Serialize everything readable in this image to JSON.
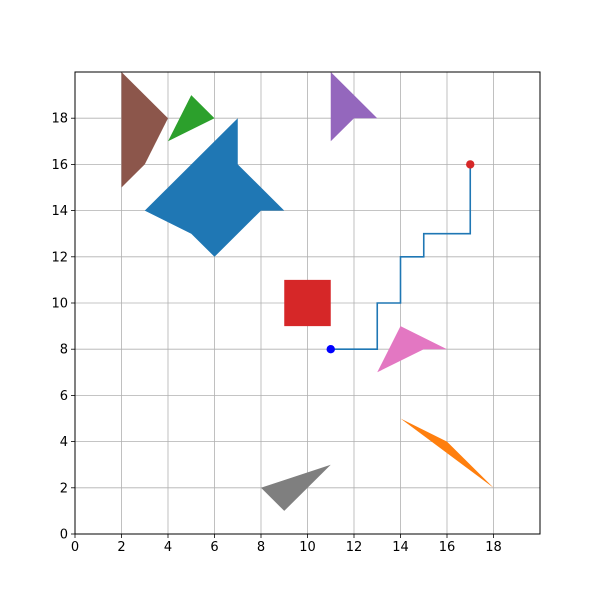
{
  "chart_data": {
    "type": "scatter",
    "title": "",
    "xlabel": "",
    "ylabel": "",
    "xlim": [
      0,
      20
    ],
    "ylim": [
      0,
      20
    ],
    "xticks": [
      0,
      2,
      4,
      6,
      8,
      10,
      12,
      14,
      16,
      18
    ],
    "yticks": [
      0,
      2,
      4,
      6,
      8,
      10,
      12,
      14,
      16,
      18
    ],
    "grid": true,
    "obstacles": [
      {
        "color": "#8c564b",
        "points": [
          [
            2,
            20
          ],
          [
            4,
            18
          ],
          [
            3,
            16
          ],
          [
            2,
            15
          ]
        ]
      },
      {
        "color": "#2ca02c",
        "points": [
          [
            4,
            17
          ],
          [
            5,
            19
          ],
          [
            6,
            18
          ]
        ]
      },
      {
        "color": "#1f77b4",
        "points": [
          [
            3,
            14
          ],
          [
            7,
            18
          ],
          [
            7,
            16
          ],
          [
            9,
            14
          ],
          [
            8,
            14
          ],
          [
            6,
            12
          ],
          [
            5,
            13
          ]
        ]
      },
      {
        "color": "#9467bd",
        "points": [
          [
            11,
            20
          ],
          [
            11,
            17
          ],
          [
            12,
            18
          ],
          [
            13,
            18
          ]
        ]
      },
      {
        "color": "#d62728",
        "points": [
          [
            9,
            9
          ],
          [
            9,
            11
          ],
          [
            11,
            11
          ],
          [
            11,
            9
          ]
        ]
      },
      {
        "color": "#e377c2",
        "points": [
          [
            13,
            7
          ],
          [
            14,
            9
          ],
          [
            16,
            8
          ],
          [
            15,
            8
          ]
        ]
      },
      {
        "color": "#ff7f0e",
        "points": [
          [
            14,
            5
          ],
          [
            16,
            4
          ],
          [
            18,
            2
          ]
        ]
      },
      {
        "color": "#7f7f7f",
        "points": [
          [
            8,
            2
          ],
          [
            11,
            3
          ],
          [
            9,
            1
          ]
        ]
      }
    ],
    "path": {
      "color": "#1f77b4",
      "points": [
        [
          11,
          8
        ],
        [
          13,
          8
        ],
        [
          13,
          10
        ],
        [
          14,
          10
        ],
        [
          14,
          12
        ],
        [
          15,
          12
        ],
        [
          15,
          13
        ],
        [
          17,
          13
        ],
        [
          17,
          16
        ]
      ]
    },
    "start": {
      "x": 11,
      "y": 8,
      "color": "#0000ff"
    },
    "goal": {
      "x": 17,
      "y": 16,
      "color": "#d62728"
    }
  }
}
